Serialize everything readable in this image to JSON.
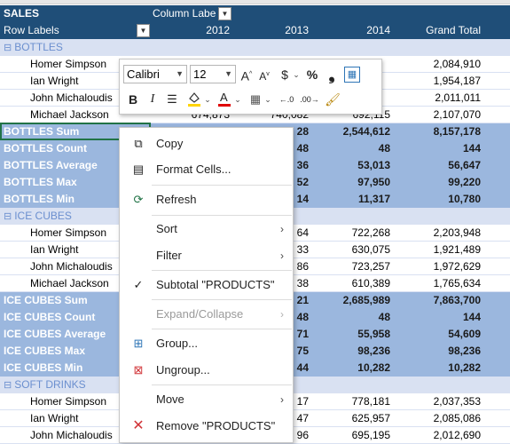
{
  "pivot": {
    "title": "SALES",
    "column_labels": "Column Labels",
    "row_labels": "Row Labels",
    "years": [
      "2012",
      "2013",
      "2014"
    ],
    "grand_total": "Grand Total",
    "groups": [
      {
        "name": "BOTTLES",
        "rows": [
          {
            "name": "Homer Simpson",
            "v": [
              "",
              "",
              "",
              "2,084,910"
            ]
          },
          {
            "name": "Ian Wright",
            "v": [
              "",
              "",
              "",
              "1,954,187"
            ]
          },
          {
            "name": "John Michaloudis",
            "v": [
              "",
              "",
              "",
              "2,011,011"
            ]
          },
          {
            "name": "Michael Jackson",
            "v": [
              "674,873",
              "740,082",
              "692,115",
              "2,107,070"
            ]
          }
        ],
        "subtotals": [
          {
            "label": "BOTTLES Sum",
            "v": [
              "",
              "28",
              "2,544,612",
              "8,157,178"
            ]
          },
          {
            "label": "BOTTLES Count",
            "v": [
              "",
              "48",
              "48",
              "144"
            ]
          },
          {
            "label": "BOTTLES Average",
            "v": [
              "",
              "36",
              "53,013",
              "56,647"
            ]
          },
          {
            "label": "BOTTLES Max",
            "v": [
              "",
              "52",
              "97,950",
              "99,220"
            ]
          },
          {
            "label": "BOTTLES Min",
            "v": [
              "",
              "14",
              "11,317",
              "10,780"
            ]
          }
        ]
      },
      {
        "name": "ICE CUBES",
        "rows": [
          {
            "name": "Homer Simpson",
            "v": [
              "",
              "64",
              "722,268",
              "2,203,948"
            ]
          },
          {
            "name": "Ian Wright",
            "v": [
              "",
              "33",
              "630,075",
              "1,921,489"
            ]
          },
          {
            "name": "John Michaloudis",
            "v": [
              "",
              "86",
              "723,257",
              "1,972,629"
            ]
          },
          {
            "name": "Michael Jackson",
            "v": [
              "",
              "38",
              "610,389",
              "1,765,634"
            ]
          }
        ],
        "subtotals": [
          {
            "label": "ICE CUBES Sum",
            "v": [
              "",
              "21",
              "2,685,989",
              "7,863,700"
            ]
          },
          {
            "label": "ICE CUBES Count",
            "v": [
              "",
              "48",
              "48",
              "144"
            ]
          },
          {
            "label": "ICE CUBES Average",
            "v": [
              "",
              "71",
              "55,958",
              "54,609"
            ]
          },
          {
            "label": "ICE CUBES Max",
            "v": [
              "",
              "75",
              "98,236",
              "98,236"
            ]
          },
          {
            "label": "ICE CUBES Min",
            "v": [
              "",
              "44",
              "10,282",
              "10,282"
            ]
          }
        ]
      },
      {
        "name": "SOFT DRINKS",
        "rows": [
          {
            "name": "Homer Simpson",
            "v": [
              "",
              "17",
              "778,181",
              "2,037,353"
            ]
          },
          {
            "name": "Ian Wright",
            "v": [
              "",
              "47",
              "625,957",
              "2,085,086"
            ]
          },
          {
            "name": "John Michaloudis",
            "v": [
              "",
              "96",
              "695,195",
              "2,012,690"
            ]
          }
        ]
      }
    ]
  },
  "mini_toolbar": {
    "font_name": "Calibri",
    "font_size": "12",
    "bold": "B",
    "italic": "I",
    "currency": "$",
    "percent": "%",
    "comma": "❟"
  },
  "context_menu": {
    "copy": "Copy",
    "format_cells": "Format Cells...",
    "refresh": "Refresh",
    "sort": "Sort",
    "filter": "Filter",
    "subtotal": "Subtotal \"PRODUCTS\"",
    "expand_collapse": "Expand/Collapse",
    "group": "Group...",
    "ungroup": "Ungroup...",
    "move": "Move",
    "remove": "Remove \"PRODUCTS\""
  }
}
